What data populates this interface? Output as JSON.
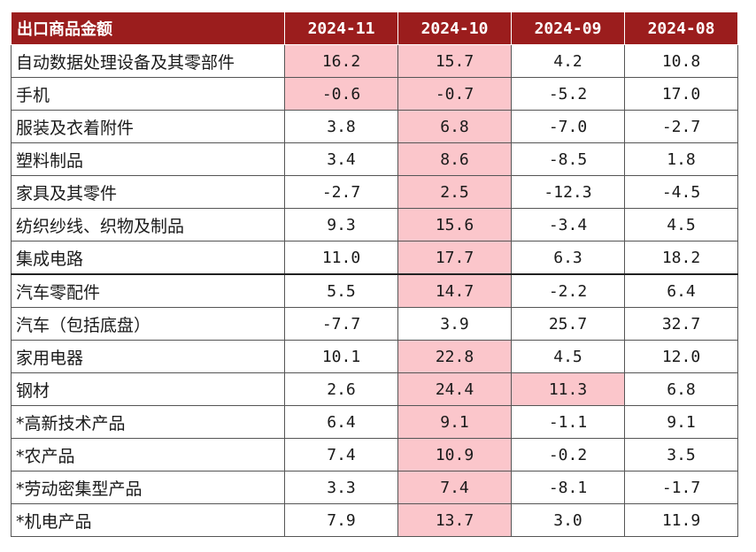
{
  "chart_data": {
    "type": "table",
    "header": {
      "label": "出口商品金额",
      "columns": [
        "2024-11",
        "2024-10",
        "2024-09",
        "2024-08"
      ]
    },
    "rows": [
      {
        "name": "自动数据处理设备及其零部件",
        "values": [
          "16.2",
          "15.7",
          "4.2",
          "10.8"
        ],
        "highlight": [
          true,
          true,
          false,
          false
        ]
      },
      {
        "name": "手机",
        "values": [
          "-0.6",
          "-0.7",
          "-5.2",
          "17.0"
        ],
        "highlight": [
          true,
          true,
          false,
          false
        ]
      },
      {
        "name": "服装及衣着附件",
        "values": [
          "3.8",
          "6.8",
          "-7.0",
          "-2.7"
        ],
        "highlight": [
          false,
          true,
          false,
          false
        ]
      },
      {
        "name": "塑料制品",
        "values": [
          "3.4",
          "8.6",
          "-8.5",
          "1.8"
        ],
        "highlight": [
          false,
          true,
          false,
          false
        ]
      },
      {
        "name": "家具及其零件",
        "values": [
          "-2.7",
          "2.5",
          "-12.3",
          "-4.5"
        ],
        "highlight": [
          false,
          true,
          false,
          false
        ]
      },
      {
        "name": "纺织纱线、织物及制品",
        "values": [
          "9.3",
          "15.6",
          "-3.4",
          "4.5"
        ],
        "highlight": [
          false,
          true,
          false,
          false
        ]
      },
      {
        "name": "集成电路",
        "values": [
          "11.0",
          "17.7",
          "6.3",
          "18.2"
        ],
        "highlight": [
          false,
          true,
          false,
          false
        ]
      },
      {
        "name": "汽车零配件",
        "values": [
          "5.5",
          "14.7",
          "-2.2",
          "6.4"
        ],
        "highlight": [
          false,
          true,
          false,
          false
        ]
      },
      {
        "name": "汽车（包括底盘）",
        "values": [
          "-7.7",
          "3.9",
          "25.7",
          "32.7"
        ],
        "highlight": [
          false,
          false,
          false,
          false
        ]
      },
      {
        "name": "家用电器",
        "values": [
          "10.1",
          "22.8",
          "4.5",
          "12.0"
        ],
        "highlight": [
          false,
          true,
          false,
          false
        ]
      },
      {
        "name": "钢材",
        "values": [
          "2.6",
          "24.4",
          "11.3",
          "6.8"
        ],
        "highlight": [
          false,
          true,
          true,
          false
        ]
      },
      {
        "name": "*高新技术产品",
        "values": [
          "6.4",
          "9.1",
          "-1.1",
          "9.1"
        ],
        "highlight": [
          false,
          true,
          false,
          false
        ]
      },
      {
        "name": "*农产品",
        "values": [
          "7.4",
          "10.9",
          "-0.2",
          "3.5"
        ],
        "highlight": [
          false,
          true,
          false,
          false
        ]
      },
      {
        "name": "*劳动密集型产品",
        "values": [
          "3.3",
          "7.4",
          "-8.1",
          "-1.7"
        ],
        "highlight": [
          false,
          true,
          false,
          false
        ]
      },
      {
        "name": "*机电产品",
        "values": [
          "7.9",
          "13.7",
          "3.0",
          "11.9"
        ],
        "highlight": [
          false,
          true,
          false,
          false
        ]
      }
    ]
  },
  "colors": {
    "header_bg": "#9b1d1d",
    "header_text": "#ffffff",
    "highlight_bg": "#fbc6cb",
    "border": "#555555"
  }
}
